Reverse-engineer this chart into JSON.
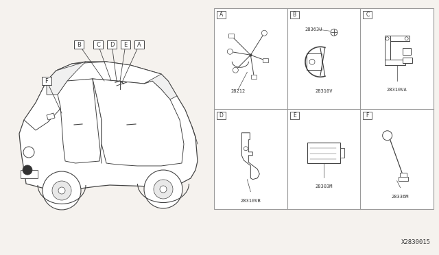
{
  "bg_color": "#ffffff",
  "grid_bg": "#ffffff",
  "outer_bg": "#f5f2ee",
  "border_color": "#999999",
  "diagram_id": "X2830015",
  "grid_labels": [
    "A",
    "B",
    "C",
    "D",
    "E",
    "F"
  ],
  "part_numbers": {
    "A": "28212",
    "B_top": "28363U",
    "B_bottom": "28310V",
    "C": "28310VA",
    "D": "28310VB",
    "E": "28303M",
    "F": "28336M"
  },
  "line_color": "#444444",
  "grid_line_color": "#999999",
  "text_color": "#333333",
  "font_size_label": 6,
  "font_size_part": 5.5,
  "font_size_diagram_id": 6.5
}
